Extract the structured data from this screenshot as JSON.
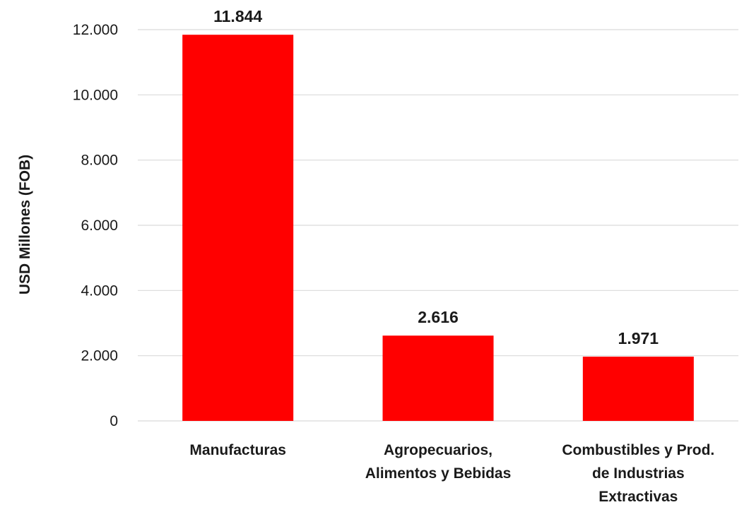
{
  "chart_data": {
    "type": "bar",
    "categories": [
      [
        "Manufacturas"
      ],
      [
        "Agropecuarios,",
        "Alimentos y Bebidas"
      ],
      [
        "Combustibles y Prod.",
        "de Industrias",
        "Extractivas"
      ]
    ],
    "values": [
      11844,
      2616,
      1971
    ],
    "data_labels": [
      "11.844",
      "2.616",
      "1.971"
    ],
    "ylabel": "USD Millones (FOB)",
    "ylim": [
      0,
      12000
    ],
    "yticks": [
      0,
      2000,
      4000,
      6000,
      8000,
      10000,
      12000
    ],
    "ytick_labels": [
      "0",
      "2.000",
      "4.000",
      "6.000",
      "8.000",
      "10.000",
      "12.000"
    ],
    "bar_color": "#ff0000",
    "grid": true
  }
}
